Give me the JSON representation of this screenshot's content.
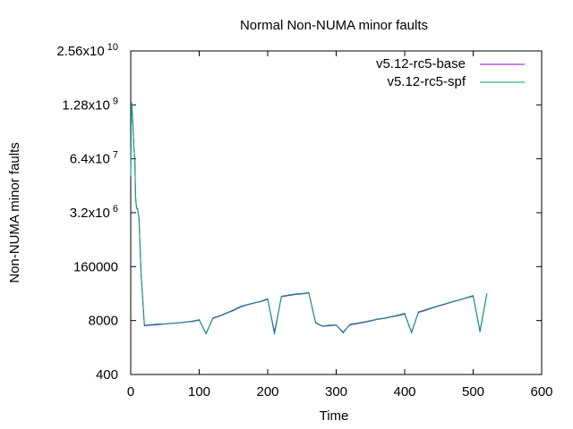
{
  "chart_data": {
    "type": "line",
    "title": "Normal Non-NUMA minor faults",
    "xlabel": "Time",
    "ylabel": "Non-NUMA minor faults",
    "xlim": [
      0,
      600
    ],
    "ylim": [
      400,
      25600000000
    ],
    "yscale": "log",
    "grid": false,
    "legend_position": "top-right",
    "x_ticks": [
      0,
      100,
      200,
      300,
      400,
      500,
      600
    ],
    "y_ticks": [
      {
        "value": 400,
        "mantissa": "400",
        "exponent": ""
      },
      {
        "value": 8000,
        "mantissa": "8000",
        "exponent": ""
      },
      {
        "value": 160000,
        "mantissa": "160000",
        "exponent": ""
      },
      {
        "value": 3200000,
        "mantissa": "3.2x10",
        "exponent": "6"
      },
      {
        "value": 64000000,
        "mantissa": "6.4x10",
        "exponent": "7"
      },
      {
        "value": 1280000000,
        "mantissa": "1.28x10",
        "exponent": "9"
      },
      {
        "value": 25600000000,
        "mantissa": "2.56x10",
        "exponent": "10"
      }
    ],
    "series": [
      {
        "name": "v5.12-rc5-base",
        "color": "#9400d3",
        "points": [
          [
            0,
            25000000
          ],
          [
            1,
            1500000000
          ],
          [
            2,
            1000000000
          ],
          [
            3,
            500000000
          ],
          [
            4,
            200000000
          ],
          [
            5,
            100000000
          ],
          [
            6,
            60000000
          ],
          [
            7,
            8000000
          ],
          [
            8,
            5000000
          ],
          [
            9,
            4000000
          ],
          [
            10,
            4000000
          ],
          [
            11,
            3000000
          ],
          [
            12,
            2500000
          ],
          [
            15,
            110000
          ],
          [
            20,
            6000
          ],
          [
            30,
            6200
          ],
          [
            40,
            6400
          ],
          [
            50,
            6600
          ],
          [
            60,
            6800
          ],
          [
            70,
            7000
          ],
          [
            80,
            7300
          ],
          [
            90,
            7600
          ],
          [
            100,
            8200
          ],
          [
            110,
            3900
          ],
          [
            120,
            9000
          ],
          [
            130,
            10300
          ],
          [
            140,
            12000
          ],
          [
            150,
            14000
          ],
          [
            160,
            17000
          ],
          [
            170,
            19000
          ],
          [
            180,
            21000
          ],
          [
            190,
            23000
          ],
          [
            200,
            26000
          ],
          [
            210,
            4200
          ],
          [
            220,
            30000
          ],
          [
            230,
            32000
          ],
          [
            240,
            34000
          ],
          [
            250,
            35000
          ],
          [
            260,
            37000
          ],
          [
            270,
            7000
          ],
          [
            280,
            5800
          ],
          [
            290,
            6000
          ],
          [
            300,
            6200
          ],
          [
            310,
            4200
          ],
          [
            320,
            6300
          ],
          [
            330,
            6700
          ],
          [
            340,
            7200
          ],
          [
            350,
            7800
          ],
          [
            360,
            8500
          ],
          [
            370,
            9000
          ],
          [
            380,
            9800
          ],
          [
            390,
            10500
          ],
          [
            400,
            11500
          ],
          [
            410,
            4200
          ],
          [
            420,
            12500
          ],
          [
            430,
            14000
          ],
          [
            440,
            16000
          ],
          [
            450,
            18000
          ],
          [
            460,
            20000
          ],
          [
            470,
            22500
          ],
          [
            480,
            25000
          ],
          [
            490,
            28000
          ],
          [
            500,
            31000
          ],
          [
            510,
            4500
          ],
          [
            520,
            35000
          ]
        ]
      },
      {
        "name": "v5.12-rc5-spf",
        "color": "#009e73",
        "points": [
          [
            0,
            25000000
          ],
          [
            1,
            1500000000
          ],
          [
            2,
            1000000000
          ],
          [
            3,
            500000000
          ],
          [
            4,
            200000000
          ],
          [
            5,
            100000000
          ],
          [
            6,
            60000000
          ],
          [
            7,
            8000000
          ],
          [
            8,
            5000000
          ],
          [
            9,
            4000000
          ],
          [
            10,
            4000000
          ],
          [
            11,
            3000000
          ],
          [
            12,
            2500000
          ],
          [
            15,
            120000
          ],
          [
            20,
            6200
          ],
          [
            30,
            6400
          ],
          [
            40,
            6600
          ],
          [
            50,
            6700
          ],
          [
            60,
            6900
          ],
          [
            70,
            7100
          ],
          [
            80,
            7400
          ],
          [
            90,
            7800
          ],
          [
            100,
            8400
          ],
          [
            110,
            3800
          ],
          [
            120,
            9300
          ],
          [
            130,
            10500
          ],
          [
            140,
            12300
          ],
          [
            150,
            14500
          ],
          [
            160,
            17500
          ],
          [
            170,
            19500
          ],
          [
            180,
            21500
          ],
          [
            190,
            23500
          ],
          [
            200,
            27000
          ],
          [
            210,
            3700
          ],
          [
            220,
            31000
          ],
          [
            230,
            33000
          ],
          [
            240,
            35000
          ],
          [
            250,
            36000
          ],
          [
            260,
            38000
          ],
          [
            270,
            7200
          ],
          [
            280,
            5900
          ],
          [
            290,
            6200
          ],
          [
            300,
            6300
          ],
          [
            310,
            4000
          ],
          [
            320,
            6500
          ],
          [
            330,
            6900
          ],
          [
            340,
            7400
          ],
          [
            350,
            8000
          ],
          [
            360,
            8700
          ],
          [
            370,
            9200
          ],
          [
            380,
            10000
          ],
          [
            390,
            10800
          ],
          [
            400,
            12000
          ],
          [
            410,
            4000
          ],
          [
            420,
            13000
          ],
          [
            430,
            14500
          ],
          [
            440,
            16500
          ],
          [
            450,
            18500
          ],
          [
            460,
            20500
          ],
          [
            470,
            23000
          ],
          [
            480,
            25500
          ],
          [
            490,
            28500
          ],
          [
            500,
            32000
          ],
          [
            510,
            4200
          ],
          [
            520,
            36000
          ]
        ]
      }
    ]
  }
}
